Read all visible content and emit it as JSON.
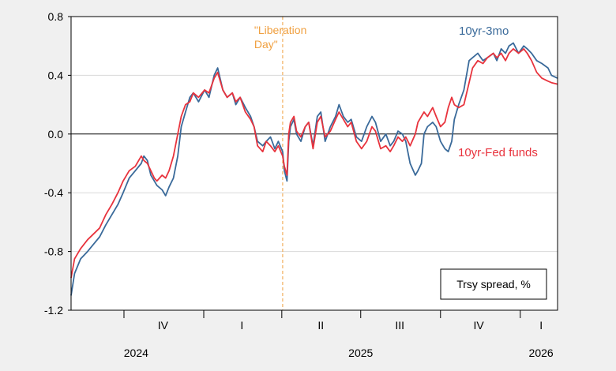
{
  "chart_data": {
    "type": "line",
    "ylim": [
      -1.2,
      0.8
    ],
    "yticks": [
      0.8,
      0.4,
      0.0,
      -0.4,
      -0.8,
      -1.2
    ],
    "ytick_labels": [
      "0.8",
      "0.4",
      "0.0",
      "-0.4",
      "-0.8",
      "-1.2"
    ],
    "grid": true,
    "x_range": [
      "2024-08-01",
      "2026-02-13"
    ],
    "quarter_labels": [
      {
        "label": "IV",
        "date": "2024-11-15"
      },
      {
        "label": "I",
        "date": "2025-02-14"
      },
      {
        "label": "II",
        "date": "2025-05-16"
      },
      {
        "label": "III",
        "date": "2025-08-15"
      },
      {
        "label": "IV",
        "date": "2025-11-14"
      },
      {
        "label": "I",
        "date": "2026-01-25"
      }
    ],
    "quarter_boundaries": [
      "2024-10-01",
      "2025-01-01",
      "2025-04-01",
      "2025-07-01",
      "2025-10-01",
      "2026-01-01"
    ],
    "year_labels": [
      {
        "label": "2024",
        "date": "2024-10-15"
      },
      {
        "label": "2025",
        "date": "2025-07-01"
      },
      {
        "label": "2026",
        "date": "2026-01-25"
      }
    ],
    "annotation": {
      "text_lines": [
        "\"Liberation",
        "Day\""
      ],
      "date": "2025-04-02",
      "color": "#f0a040"
    },
    "legend_box": "Trsy spread, %",
    "series": [
      {
        "name": "10yr-3mo",
        "color": "#3a6a9a",
        "points": [
          [
            "2024-08-01",
            -1.1
          ],
          [
            "2024-08-05",
            -0.95
          ],
          [
            "2024-08-12",
            -0.85
          ],
          [
            "2024-08-20",
            -0.8
          ],
          [
            "2024-08-27",
            -0.75
          ],
          [
            "2024-09-03",
            -0.7
          ],
          [
            "2024-09-10",
            -0.62
          ],
          [
            "2024-09-17",
            -0.55
          ],
          [
            "2024-09-24",
            -0.48
          ],
          [
            "2024-09-30",
            -0.4
          ],
          [
            "2024-10-07",
            -0.3
          ],
          [
            "2024-10-14",
            -0.25
          ],
          [
            "2024-10-21",
            -0.2
          ],
          [
            "2024-10-24",
            -0.15
          ],
          [
            "2024-10-28",
            -0.18
          ],
          [
            "2024-11-01",
            -0.28
          ],
          [
            "2024-11-05",
            -0.32
          ],
          [
            "2024-11-08",
            -0.35
          ],
          [
            "2024-11-14",
            -0.38
          ],
          [
            "2024-11-18",
            -0.42
          ],
          [
            "2024-11-22",
            -0.36
          ],
          [
            "2024-11-27",
            -0.3
          ],
          [
            "2024-12-02",
            -0.15
          ],
          [
            "2024-12-06",
            0.05
          ],
          [
            "2024-12-11",
            0.15
          ],
          [
            "2024-12-16",
            0.25
          ],
          [
            "2024-12-20",
            0.28
          ],
          [
            "2024-12-26",
            0.22
          ],
          [
            "2025-01-02",
            0.3
          ],
          [
            "2025-01-07",
            0.25
          ],
          [
            "2025-01-13",
            0.4
          ],
          [
            "2025-01-17",
            0.45
          ],
          [
            "2025-01-23",
            0.3
          ],
          [
            "2025-01-28",
            0.25
          ],
          [
            "2025-02-03",
            0.28
          ],
          [
            "2025-02-07",
            0.2
          ],
          [
            "2025-02-12",
            0.25
          ],
          [
            "2025-02-18",
            0.18
          ],
          [
            "2025-02-24",
            0.12
          ],
          [
            "2025-02-28",
            0.05
          ],
          [
            "2025-03-04",
            -0.05
          ],
          [
            "2025-03-10",
            -0.08
          ],
          [
            "2025-03-14",
            -0.05
          ],
          [
            "2025-03-19",
            -0.02
          ],
          [
            "2025-03-24",
            -0.1
          ],
          [
            "2025-03-28",
            -0.05
          ],
          [
            "2025-04-02",
            -0.12
          ],
          [
            "2025-04-04",
            -0.25
          ],
          [
            "2025-04-07",
            -0.32
          ],
          [
            "2025-04-09",
            -0.05
          ],
          [
            "2025-04-11",
            0.05
          ],
          [
            "2025-04-15",
            0.1
          ],
          [
            "2025-04-18",
            0.0
          ],
          [
            "2025-04-23",
            -0.05
          ],
          [
            "2025-04-28",
            0.05
          ],
          [
            "2025-05-02",
            0.08
          ],
          [
            "2025-05-07",
            -0.08
          ],
          [
            "2025-05-12",
            0.12
          ],
          [
            "2025-05-16",
            0.15
          ],
          [
            "2025-05-21",
            -0.05
          ],
          [
            "2025-05-27",
            0.05
          ],
          [
            "2025-06-02",
            0.12
          ],
          [
            "2025-06-06",
            0.2
          ],
          [
            "2025-06-11",
            0.12
          ],
          [
            "2025-06-16",
            0.08
          ],
          [
            "2025-06-20",
            0.1
          ],
          [
            "2025-06-26",
            -0.02
          ],
          [
            "2025-07-02",
            -0.05
          ],
          [
            "2025-07-08",
            0.05
          ],
          [
            "2025-07-14",
            0.12
          ],
          [
            "2025-07-18",
            0.08
          ],
          [
            "2025-07-24",
            -0.05
          ],
          [
            "2025-07-30",
            0.0
          ],
          [
            "2025-08-04",
            -0.08
          ],
          [
            "2025-08-08",
            -0.05
          ],
          [
            "2025-08-13",
            0.02
          ],
          [
            "2025-08-18",
            0.0
          ],
          [
            "2025-08-22",
            -0.05
          ],
          [
            "2025-08-27",
            -0.2
          ],
          [
            "2025-09-02",
            -0.28
          ],
          [
            "2025-09-05",
            -0.25
          ],
          [
            "2025-09-09",
            -0.2
          ],
          [
            "2025-09-12",
            0.0
          ],
          [
            "2025-09-16",
            0.05
          ],
          [
            "2025-09-22",
            0.08
          ],
          [
            "2025-09-26",
            0.05
          ],
          [
            "2025-10-01",
            -0.05
          ],
          [
            "2025-10-06",
            -0.1
          ],
          [
            "2025-10-10",
            -0.12
          ],
          [
            "2025-10-14",
            -0.05
          ],
          [
            "2025-10-17",
            0.1
          ],
          [
            "2025-10-22",
            0.2
          ],
          [
            "2025-10-28",
            0.3
          ],
          [
            "2025-11-03",
            0.5
          ],
          [
            "2025-11-07",
            0.52
          ],
          [
            "2025-11-13",
            0.55
          ],
          [
            "2025-11-19",
            0.5
          ],
          [
            "2025-11-24",
            0.52
          ],
          [
            "2025-12-01",
            0.55
          ],
          [
            "2025-12-05",
            0.5
          ],
          [
            "2025-12-10",
            0.58
          ],
          [
            "2025-12-15",
            0.55
          ],
          [
            "2025-12-19",
            0.6
          ],
          [
            "2025-12-24",
            0.62
          ],
          [
            "2025-12-30",
            0.55
          ],
          [
            "2026-01-05",
            0.6
          ],
          [
            "2026-01-09",
            0.58
          ],
          [
            "2026-01-14",
            0.55
          ],
          [
            "2026-01-20",
            0.5
          ],
          [
            "2026-01-26",
            0.48
          ],
          [
            "2026-02-02",
            0.45
          ],
          [
            "2026-02-06",
            0.4
          ],
          [
            "2026-02-13",
            0.38
          ]
        ]
      },
      {
        "name": "10yr-Fed funds",
        "color": "#e8333d",
        "points": [
          [
            "2024-08-01",
            -0.98
          ],
          [
            "2024-08-05",
            -0.85
          ],
          [
            "2024-08-12",
            -0.78
          ],
          [
            "2024-08-20",
            -0.72
          ],
          [
            "2024-08-27",
            -0.68
          ],
          [
            "2024-09-03",
            -0.64
          ],
          [
            "2024-09-10",
            -0.55
          ],
          [
            "2024-09-17",
            -0.48
          ],
          [
            "2024-09-24",
            -0.4
          ],
          [
            "2024-09-30",
            -0.32
          ],
          [
            "2024-10-07",
            -0.25
          ],
          [
            "2024-10-14",
            -0.22
          ],
          [
            "2024-10-21",
            -0.15
          ],
          [
            "2024-10-24",
            -0.18
          ],
          [
            "2024-10-28",
            -0.2
          ],
          [
            "2024-11-01",
            -0.25
          ],
          [
            "2024-11-05",
            -0.3
          ],
          [
            "2024-11-08",
            -0.32
          ],
          [
            "2024-11-14",
            -0.28
          ],
          [
            "2024-11-18",
            -0.3
          ],
          [
            "2024-11-22",
            -0.25
          ],
          [
            "2024-11-27",
            -0.15
          ],
          [
            "2024-12-02",
            0.0
          ],
          [
            "2024-12-06",
            0.12
          ],
          [
            "2024-12-11",
            0.2
          ],
          [
            "2024-12-16",
            0.22
          ],
          [
            "2024-12-20",
            0.28
          ],
          [
            "2024-12-26",
            0.25
          ],
          [
            "2025-01-02",
            0.3
          ],
          [
            "2025-01-07",
            0.28
          ],
          [
            "2025-01-13",
            0.38
          ],
          [
            "2025-01-17",
            0.42
          ],
          [
            "2025-01-23",
            0.3
          ],
          [
            "2025-01-28",
            0.25
          ],
          [
            "2025-02-03",
            0.28
          ],
          [
            "2025-02-07",
            0.22
          ],
          [
            "2025-02-12",
            0.25
          ],
          [
            "2025-02-18",
            0.15
          ],
          [
            "2025-02-24",
            0.1
          ],
          [
            "2025-02-28",
            0.05
          ],
          [
            "2025-03-04",
            -0.08
          ],
          [
            "2025-03-10",
            -0.12
          ],
          [
            "2025-03-14",
            -0.05
          ],
          [
            "2025-03-19",
            -0.08
          ],
          [
            "2025-03-24",
            -0.12
          ],
          [
            "2025-03-28",
            -0.08
          ],
          [
            "2025-04-02",
            -0.15
          ],
          [
            "2025-04-04",
            -0.22
          ],
          [
            "2025-04-07",
            -0.28
          ],
          [
            "2025-04-09",
            0.0
          ],
          [
            "2025-04-11",
            0.08
          ],
          [
            "2025-04-15",
            0.12
          ],
          [
            "2025-04-18",
            0.02
          ],
          [
            "2025-04-23",
            -0.02
          ],
          [
            "2025-04-28",
            0.05
          ],
          [
            "2025-05-02",
            0.08
          ],
          [
            "2025-05-07",
            -0.1
          ],
          [
            "2025-05-12",
            0.08
          ],
          [
            "2025-05-16",
            0.12
          ],
          [
            "2025-05-21",
            -0.02
          ],
          [
            "2025-05-27",
            0.02
          ],
          [
            "2025-06-02",
            0.1
          ],
          [
            "2025-06-06",
            0.15
          ],
          [
            "2025-06-11",
            0.1
          ],
          [
            "2025-06-16",
            0.05
          ],
          [
            "2025-06-20",
            0.08
          ],
          [
            "2025-06-26",
            -0.05
          ],
          [
            "2025-07-02",
            -0.1
          ],
          [
            "2025-07-08",
            -0.05
          ],
          [
            "2025-07-14",
            0.05
          ],
          [
            "2025-07-18",
            0.02
          ],
          [
            "2025-07-24",
            -0.1
          ],
          [
            "2025-07-30",
            -0.08
          ],
          [
            "2025-08-04",
            -0.12
          ],
          [
            "2025-08-08",
            -0.08
          ],
          [
            "2025-08-13",
            -0.02
          ],
          [
            "2025-08-18",
            -0.05
          ],
          [
            "2025-08-22",
            -0.02
          ],
          [
            "2025-08-27",
            -0.08
          ],
          [
            "2025-09-02",
            0.0
          ],
          [
            "2025-09-05",
            0.08
          ],
          [
            "2025-09-09",
            0.12
          ],
          [
            "2025-09-12",
            0.15
          ],
          [
            "2025-09-16",
            0.12
          ],
          [
            "2025-09-22",
            0.18
          ],
          [
            "2025-09-26",
            0.12
          ],
          [
            "2025-10-01",
            0.05
          ],
          [
            "2025-10-06",
            0.08
          ],
          [
            "2025-10-10",
            0.18
          ],
          [
            "2025-10-14",
            0.25
          ],
          [
            "2025-10-17",
            0.2
          ],
          [
            "2025-10-22",
            0.18
          ],
          [
            "2025-10-28",
            0.2
          ],
          [
            "2025-11-03",
            0.35
          ],
          [
            "2025-11-07",
            0.45
          ],
          [
            "2025-11-13",
            0.5
          ],
          [
            "2025-11-19",
            0.48
          ],
          [
            "2025-11-24",
            0.52
          ],
          [
            "2025-12-01",
            0.55
          ],
          [
            "2025-12-05",
            0.52
          ],
          [
            "2025-12-10",
            0.55
          ],
          [
            "2025-12-15",
            0.5
          ],
          [
            "2025-12-19",
            0.55
          ],
          [
            "2025-12-24",
            0.58
          ],
          [
            "2025-12-30",
            0.55
          ],
          [
            "2026-01-05",
            0.58
          ],
          [
            "2026-01-09",
            0.55
          ],
          [
            "2026-01-14",
            0.5
          ],
          [
            "2026-01-20",
            0.42
          ],
          [
            "2026-01-26",
            0.38
          ],
          [
            "2026-02-02",
            0.36
          ],
          [
            "2026-02-06",
            0.35
          ],
          [
            "2026-02-13",
            0.34
          ]
        ]
      }
    ]
  }
}
